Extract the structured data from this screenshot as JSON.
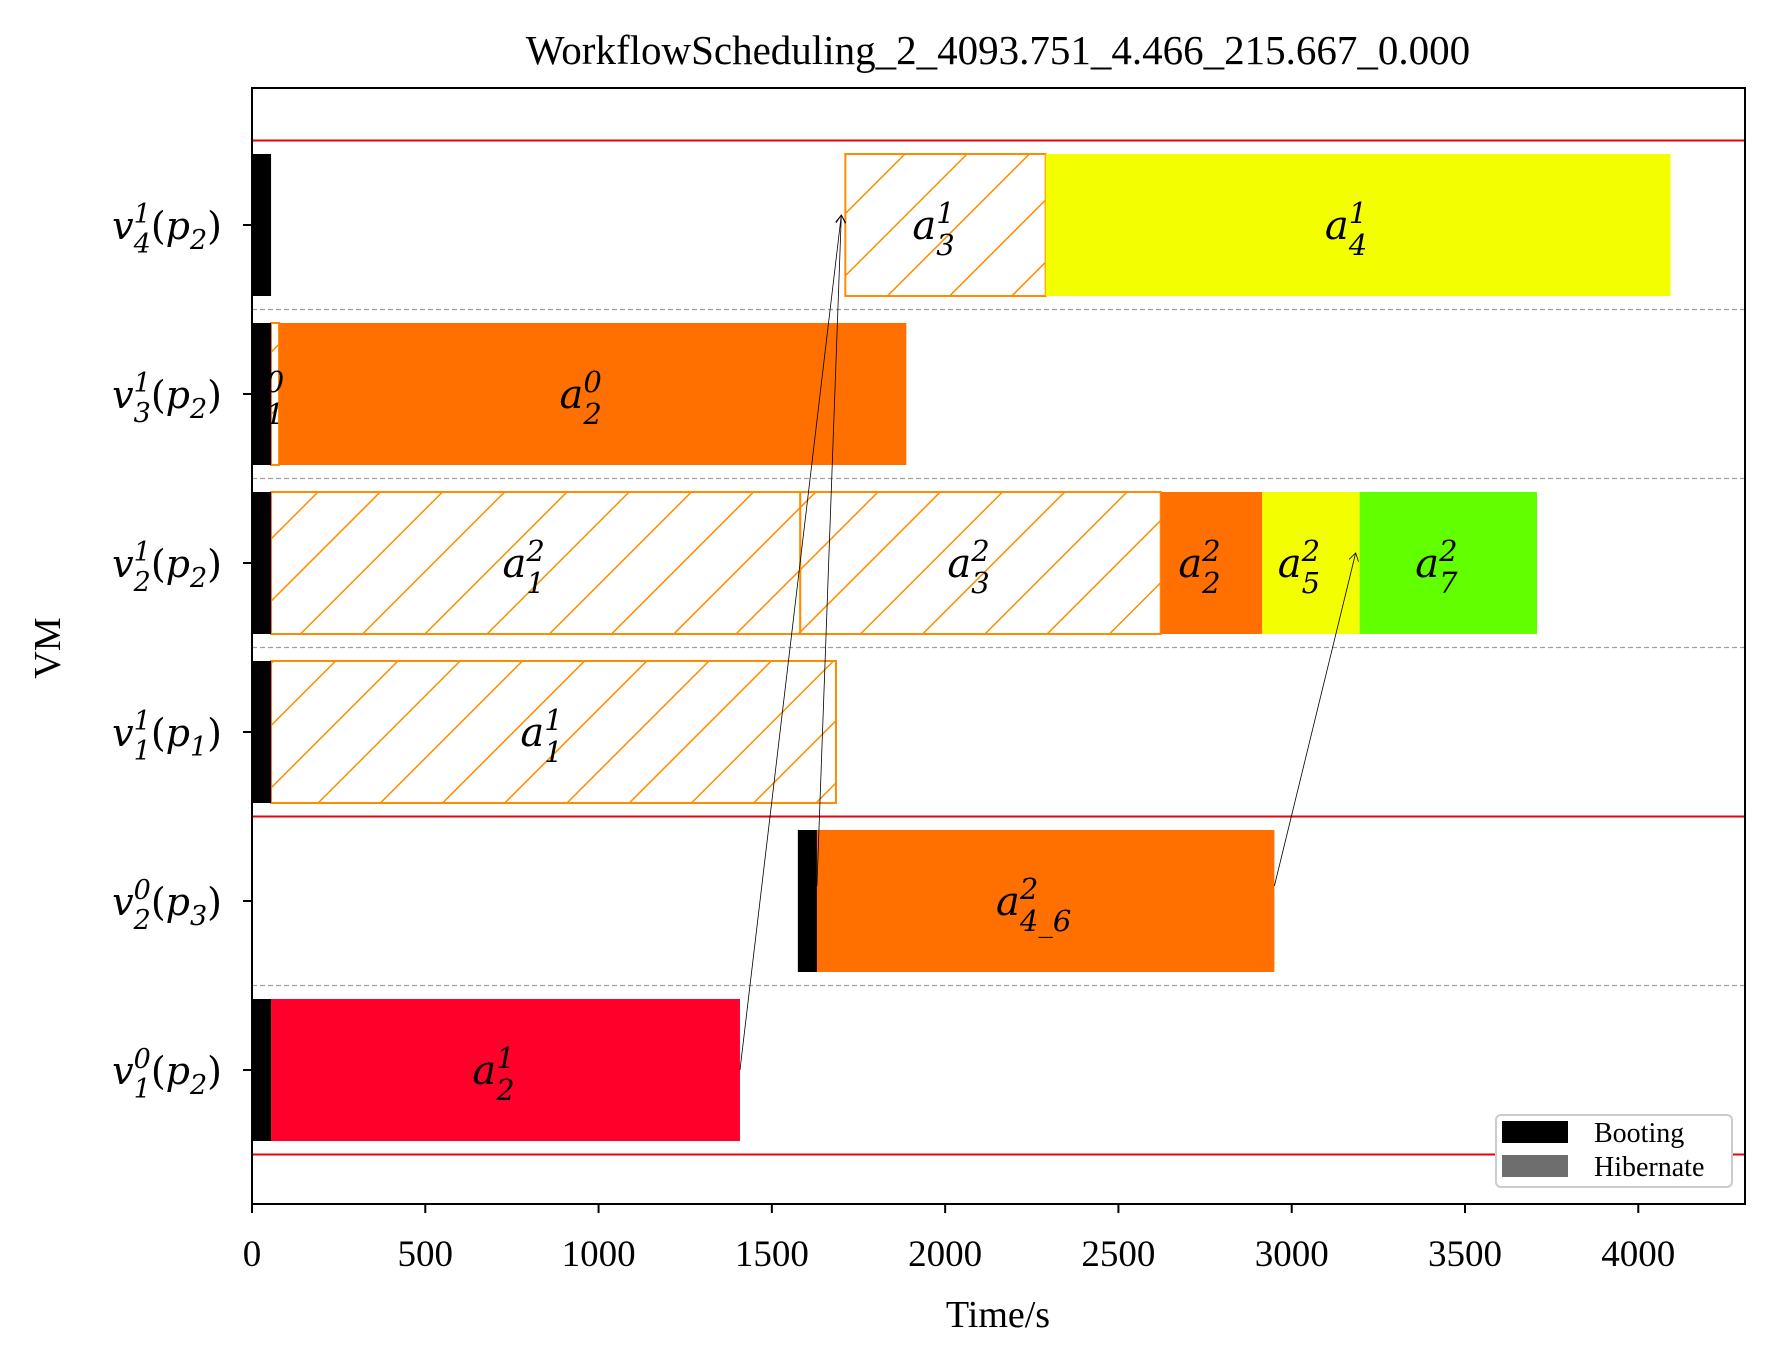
{
  "chart_data": {
    "type": "gantt",
    "title": "WorkflowScheduling_2_4093.751_4.466_215.667_0.000",
    "xlabel": "Time/s",
    "ylabel": "VM",
    "xlim": [
      0,
      4300
    ],
    "xticks": [
      "0",
      "500",
      "1000",
      "1500",
      "2000",
      "2500",
      "3000",
      "3500",
      "4000"
    ],
    "rows": [
      {
        "label": "v",
        "sup": "1",
        "sub": "4",
        "p": "p",
        "psub": "2"
      },
      {
        "label": "v",
        "sup": "1",
        "sub": "3",
        "p": "p",
        "psub": "2"
      },
      {
        "label": "v",
        "sup": "1",
        "sub": "2",
        "p": "p",
        "psub": "2"
      },
      {
        "label": "v",
        "sup": "1",
        "sub": "1",
        "p": "p",
        "psub": "1"
      },
      {
        "label": "v",
        "sup": "0",
        "sub": "2",
        "p": "p",
        "psub": "3"
      },
      {
        "label": "v",
        "sup": "0",
        "sub": "1",
        "p": "p",
        "psub": "2"
      }
    ],
    "booting": [
      {
        "row": 0,
        "start": 0,
        "end": 55
      },
      {
        "row": 1,
        "start": 0,
        "end": 55
      },
      {
        "row": 2,
        "start": 0,
        "end": 55
      },
      {
        "row": 3,
        "start": 0,
        "end": 55
      },
      {
        "row": 4,
        "start": 1575,
        "end": 1630
      },
      {
        "row": 5,
        "start": 0,
        "end": 55
      }
    ],
    "tasks": [
      {
        "row": 0,
        "start": 1712,
        "end": 2290,
        "color": "#ff7000",
        "hatched": true,
        "name": "a",
        "sup": "1",
        "sub": "3"
      },
      {
        "row": 0,
        "start": 2290,
        "end": 4093,
        "color": "#f3ff00",
        "hatched": false,
        "name": "a",
        "sup": "1",
        "sub": "4"
      },
      {
        "row": 1,
        "start": 55,
        "end": 78,
        "color": "#ff7000",
        "hatched": true,
        "name": "a",
        "sup": "0",
        "sub": "1"
      },
      {
        "row": 1,
        "start": 78,
        "end": 1888,
        "color": "#ff7000",
        "hatched": false,
        "name": "a",
        "sup": "0",
        "sub": "2"
      },
      {
        "row": 2,
        "start": 55,
        "end": 1582,
        "color": "#ff7000",
        "hatched": true,
        "name": "a",
        "sup": "2",
        "sub": "1"
      },
      {
        "row": 2,
        "start": 1582,
        "end": 2622,
        "color": "#ff7000",
        "hatched": true,
        "name": "a",
        "sup": "2",
        "sub": "3"
      },
      {
        "row": 2,
        "start": 2622,
        "end": 2915,
        "color": "#ff7000",
        "hatched": false,
        "name": "a",
        "sup": "2",
        "sub": "2"
      },
      {
        "row": 2,
        "start": 2915,
        "end": 3196,
        "color": "#f3ff00",
        "hatched": false,
        "name": "a",
        "sup": "2",
        "sub": "5"
      },
      {
        "row": 2,
        "start": 3196,
        "end": 3708,
        "color": "#62ff00",
        "hatched": false,
        "name": "a",
        "sup": "2",
        "sub": "7"
      },
      {
        "row": 3,
        "start": 55,
        "end": 1685,
        "color": "#ff7000",
        "hatched": true,
        "name": "a",
        "sup": "1",
        "sub": "1"
      },
      {
        "row": 4,
        "start": 1630,
        "end": 2950,
        "color": "#ff7000",
        "hatched": false,
        "name": "a",
        "sup": "2",
        "sub": "4_6"
      },
      {
        "row": 5,
        "start": 55,
        "end": 1408,
        "color": "#ff002b",
        "hatched": false,
        "name": "a",
        "sup": "1",
        "sub": "2"
      }
    ],
    "arrows": [
      {
        "from_t": 1408,
        "from_row": 5,
        "to_t": 1712,
        "to_row": 0
      },
      {
        "from_t": 1630,
        "from_row": 4,
        "to_t": 1712,
        "to_row": 0
      },
      {
        "from_t": 2950,
        "from_row": 4,
        "to_t": 3196,
        "to_row": 2
      }
    ],
    "provider_separators_after_rows": [
      3
    ],
    "legend": {
      "position": "bottom-right",
      "entries": [
        {
          "label": "Booting",
          "color": "#000000"
        },
        {
          "label": "Hibernate",
          "color": "#6e6e6e"
        }
      ]
    },
    "colors": {
      "boundary": "#e8000b",
      "hatch": "#ff8c00",
      "grid": "#a0a0a0"
    }
  }
}
